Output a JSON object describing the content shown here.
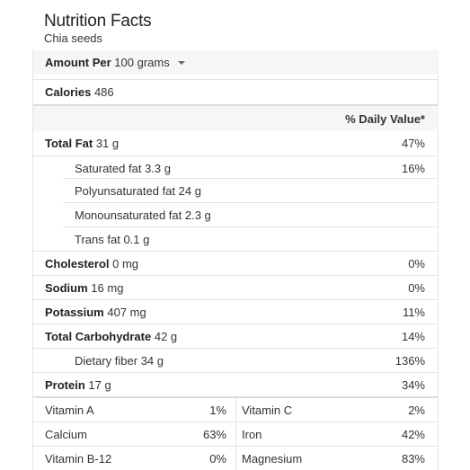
{
  "header": {
    "title": "Nutrition Facts",
    "subtitle": "Chia seeds"
  },
  "amount_per": {
    "label": "Amount Per",
    "selected": "100 grams",
    "icon": "chevron-down-icon"
  },
  "calories": {
    "label": "Calories",
    "value": "486"
  },
  "daily_value_header": "% Daily Value*",
  "nutrients": [
    {
      "name": "Total Fat",
      "amount": "31 g",
      "dv": "47%"
    },
    {
      "name": "Saturated fat",
      "amount": "3.3 g",
      "dv": "16%"
    },
    {
      "name": "Polyunsaturated fat",
      "amount": "24 g",
      "dv": ""
    },
    {
      "name": "Monounsaturated fat",
      "amount": "2.3 g",
      "dv": ""
    },
    {
      "name": "Trans fat",
      "amount": "0.1 g",
      "dv": ""
    },
    {
      "name": "Cholesterol",
      "amount": "0 mg",
      "dv": "0%"
    },
    {
      "name": "Sodium",
      "amount": "16 mg",
      "dv": "0%"
    },
    {
      "name": "Potassium",
      "amount": "407 mg",
      "dv": "11%"
    },
    {
      "name": "Total Carbohydrate",
      "amount": "42 g",
      "dv": "14%"
    },
    {
      "name": "Dietary fiber",
      "amount": "34 g",
      "dv": "136%"
    },
    {
      "name": "Protein",
      "amount": "17 g",
      "dv": "34%"
    }
  ],
  "vitamins": [
    {
      "left_name": "Vitamin A",
      "left_dv": "1%",
      "right_name": "Vitamin C",
      "right_dv": "2%"
    },
    {
      "left_name": "Calcium",
      "left_dv": "63%",
      "right_name": "Iron",
      "right_dv": "42%"
    },
    {
      "left_name": "Vitamin B-12",
      "left_dv": "0%",
      "right_name": "Magnesium",
      "right_dv": "83%"
    }
  ]
}
